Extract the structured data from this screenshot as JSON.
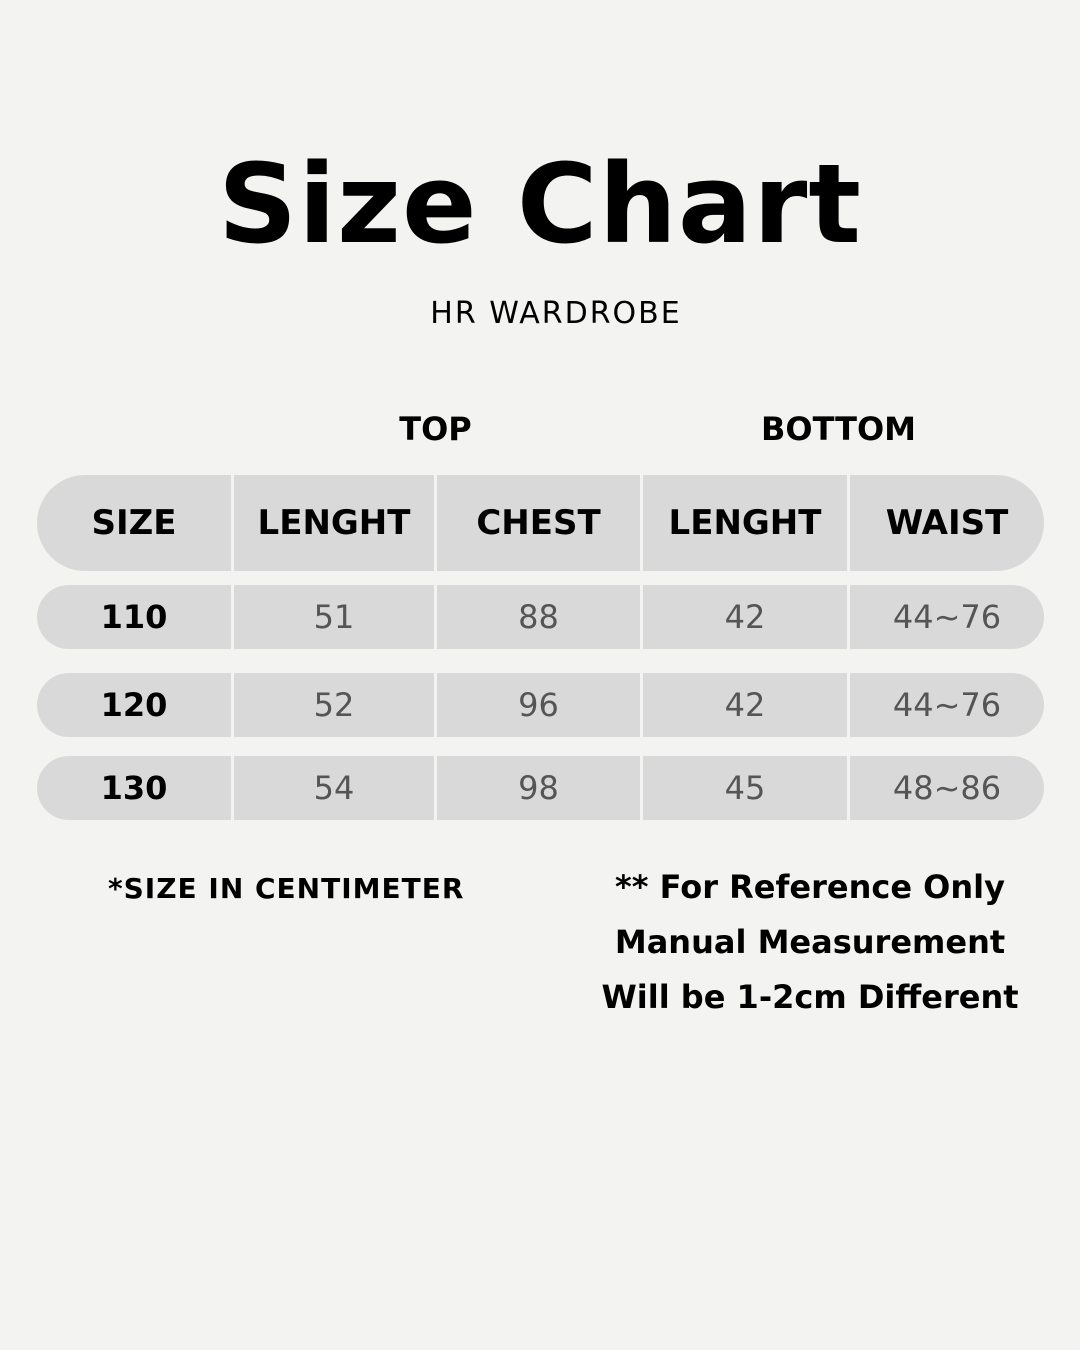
{
  "title": "Size Chart",
  "subtitle": "HR WARDROBE",
  "groups": {
    "top": "TOP",
    "bottom": "BOTTOM"
  },
  "columns": [
    "SIZE",
    "LENGHT",
    "CHEST",
    "LENGHT",
    "WAIST"
  ],
  "rows": [
    [
      "110",
      "51",
      "88",
      "42",
      "44~76"
    ],
    [
      "120",
      "52",
      "96",
      "42",
      "44~76"
    ],
    [
      "130",
      "54",
      "98",
      "45",
      "48~86"
    ]
  ],
  "unit_note": "*SIZE IN CENTIMETER",
  "notes": [
    "** For Reference Only",
    "Manual Measurement",
    "Will be 1-2cm Different"
  ]
}
